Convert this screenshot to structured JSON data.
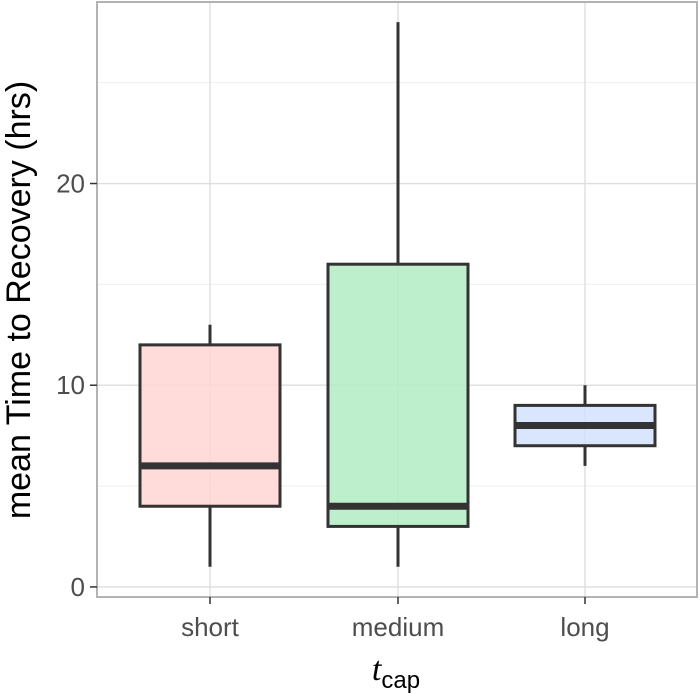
{
  "chart_data": {
    "type": "boxplot",
    "title": "",
    "xlabel": "t",
    "xlabel_subscript": "cap",
    "ylabel": "mean Time to Recovery (hrs)",
    "ylim": [
      -0.5,
      29
    ],
    "yticks": [
      0,
      10,
      20
    ],
    "ytick_labels": [
      "0",
      "10",
      "20"
    ],
    "grid": true,
    "legend": "none",
    "categories": [
      "short",
      "medium",
      "long"
    ],
    "series": [
      {
        "category": "short",
        "whisker_low": 1,
        "q1": 4,
        "median": 6,
        "q3": 12,
        "whisker_high": 13,
        "fill": "#ffd5d3"
      },
      {
        "category": "medium",
        "whisker_low": 1,
        "q1": 3,
        "median": 4,
        "q3": 16,
        "whisker_high": 28,
        "fill": "#b3ecc4"
      },
      {
        "category": "long",
        "whisker_low": 6,
        "q1": 7,
        "median": 8,
        "q3": 9,
        "whisker_high": 10,
        "fill": "#d3e2fd"
      }
    ],
    "colors": {
      "panel_border": "#b3b3b3",
      "grid_major": "#dedede",
      "grid_minor": "#efefef",
      "box_line": "#333333"
    }
  }
}
